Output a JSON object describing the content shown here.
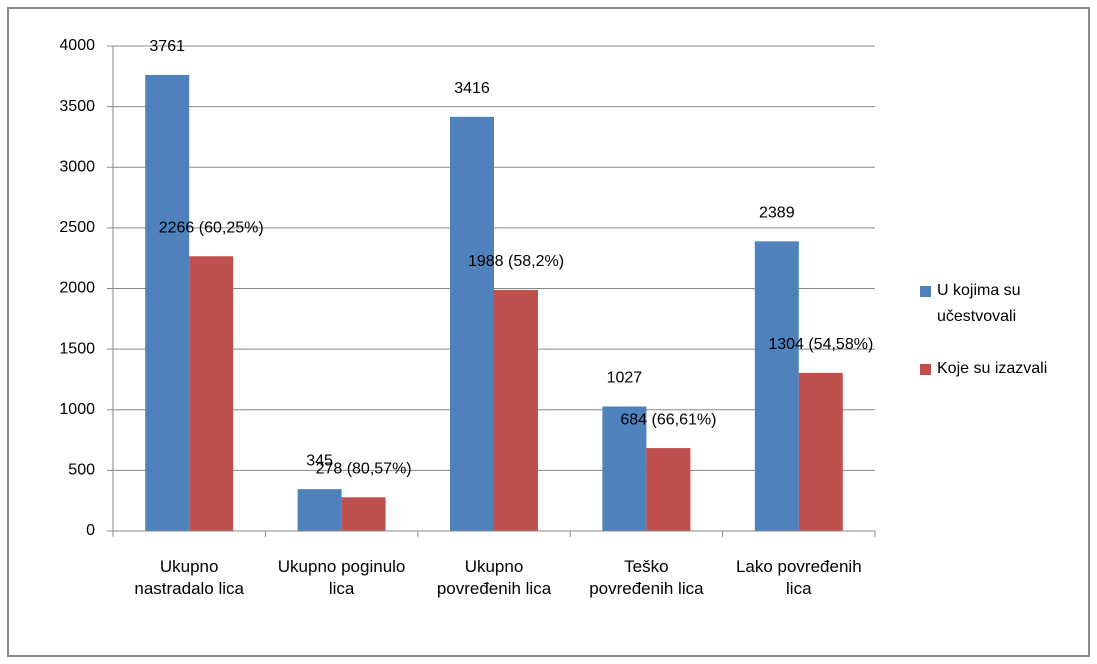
{
  "chart_data": {
    "type": "bar",
    "categories": [
      "Ukupno nastradalo lica",
      "Ukupno poginulo lica",
      "Ukupno povređenih lica",
      "Teško povređenih lica",
      "Lako povređenih lica"
    ],
    "series": [
      {
        "name": "U kojima su učestvovali",
        "color": "#4f81bd",
        "values": [
          3761,
          345,
          3416,
          1027,
          2389
        ]
      },
      {
        "name": "Koje su izazvali",
        "color": "#c0504d",
        "values": [
          2266,
          278,
          1988,
          684,
          1304
        ],
        "value_labels": [
          "2266 (60,25%)",
          "278 (80,57%)",
          "1988 (58,2%)",
          "684 (66,61%)",
          "1304 (54,58%)"
        ]
      }
    ],
    "ylim": [
      0,
      4000
    ],
    "yticks": [
      0,
      500,
      1000,
      1500,
      2000,
      2500,
      3000,
      3500,
      4000
    ],
    "grid": true,
    "legend": "right"
  }
}
